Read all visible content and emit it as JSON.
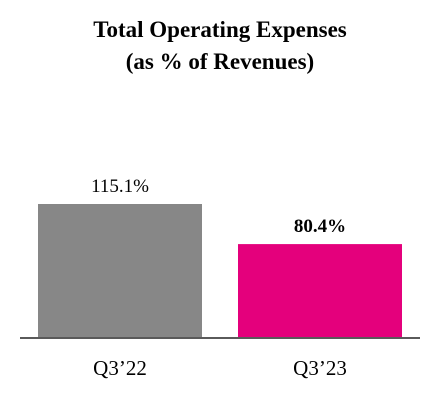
{
  "chart_data": {
    "type": "bar",
    "title": "Total Operating Expenses",
    "subtitle": "(as % of Revenues)",
    "categories": [
      "Q3’22",
      "Q3’23"
    ],
    "values": [
      115.1,
      80.4
    ],
    "value_labels": [
      "115.1%",
      "80.4%"
    ],
    "colors": [
      "#878787",
      "#e4007c"
    ],
    "label_bold": [
      false,
      true
    ],
    "ylim": [
      0,
      115.1
    ],
    "grid": false,
    "axis_color": "#5a5a5a"
  }
}
